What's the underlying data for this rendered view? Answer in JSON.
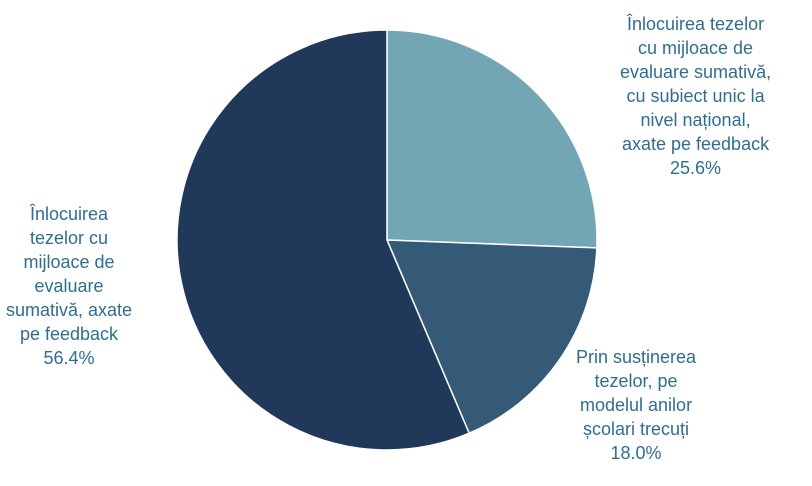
{
  "chart_data": {
    "type": "pie",
    "start_angle_deg": 0,
    "direction": "clockwise",
    "slices": [
      {
        "label_lines": [
          "Înlocuirea tezelor",
          "cu mijloace de",
          "evaluare sumativă,",
          "cu subiect unic la",
          "nivel național,",
          "axate pe feedback"
        ],
        "value": 25.6,
        "value_label": "25.6%",
        "color": "#72a6b5"
      },
      {
        "label_lines": [
          "Prin susținerea",
          "tezelor, pe",
          "modelul anilor",
          "școlari trecuți"
        ],
        "value": 18.0,
        "value_label": "18.0%",
        "color": "#345a78"
      },
      {
        "label_lines": [
          "Înlocuirea",
          "tezelor cu",
          "mijloace de",
          "evaluare",
          "sumativă, axate",
          "pe feedback"
        ],
        "value": 56.4,
        "value_label": "56.4%",
        "color": "#20385a"
      }
    ],
    "label_color": "#2f6e8f",
    "legend": "none"
  }
}
